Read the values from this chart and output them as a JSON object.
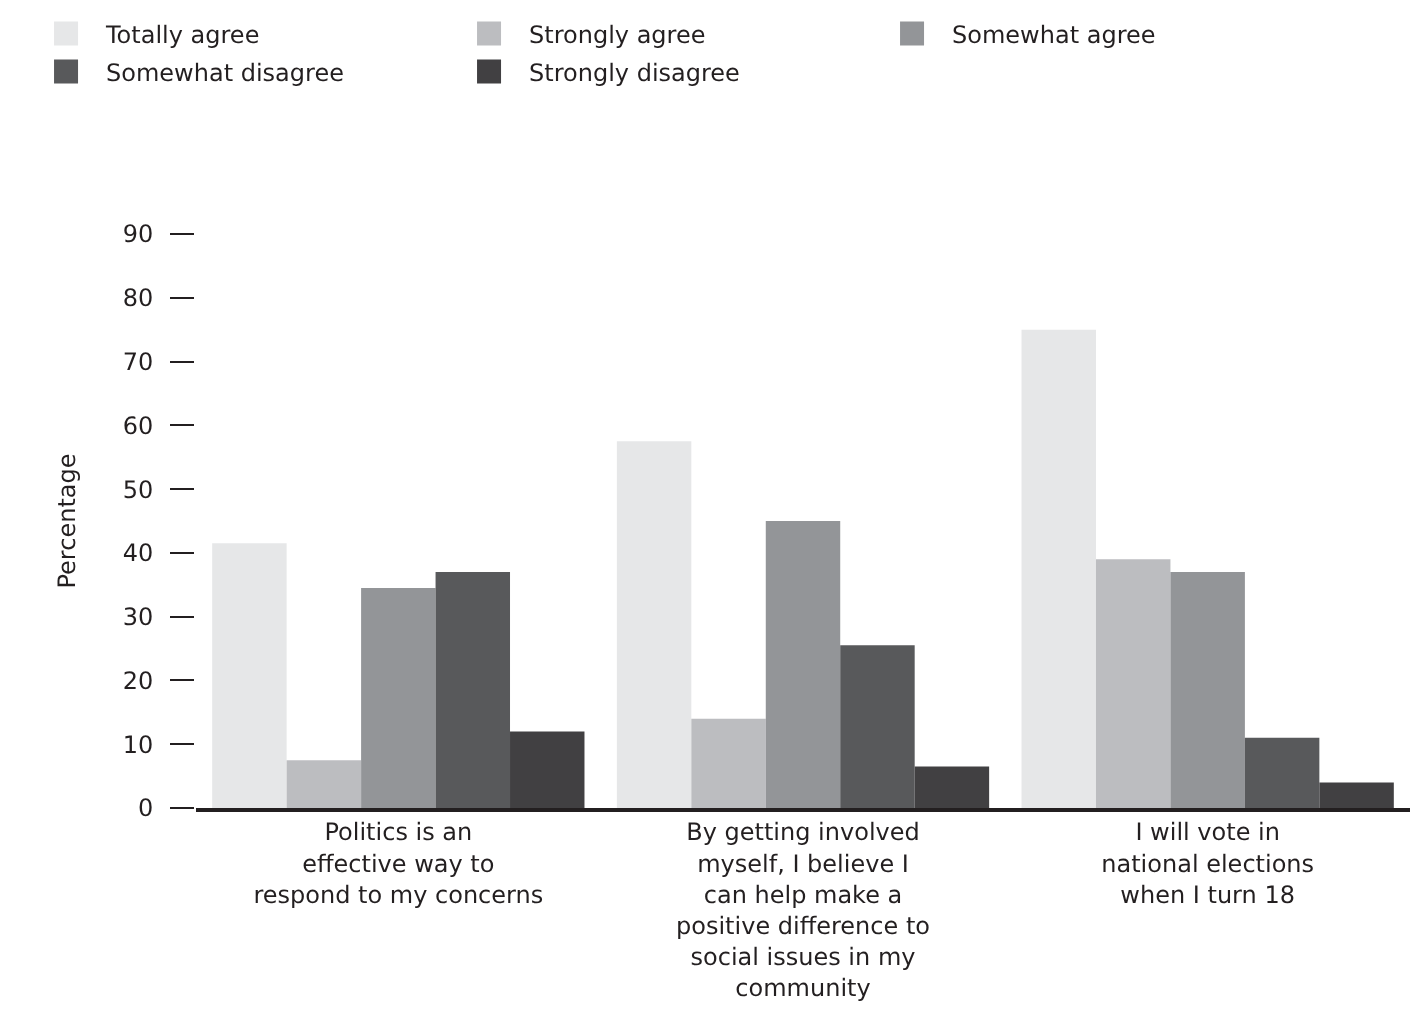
{
  "chart_data": {
    "type": "bar",
    "ylabel": "Percentage",
    "categories": [
      "Politics is an effective way to respond to my concerns",
      "By getting involved myself, I believe I can help make a positive difference to social issues in my community",
      "I will vote in national elections when I turn 18"
    ],
    "series": [
      {
        "name": "Totally agree",
        "color": "#e6e7e8",
        "values": [
          41.5,
          57.5,
          75
        ]
      },
      {
        "name": "Strongly agree",
        "color": "#bcbdc0",
        "values": [
          7.5,
          14,
          39
        ]
      },
      {
        "name": "Somewhat agree",
        "color": "#939598",
        "values": [
          34.5,
          45,
          37
        ]
      },
      {
        "name": "Somewhat disagree",
        "color": "#58595b",
        "values": [
          37,
          25.5,
          11
        ]
      },
      {
        "name": "Strongly disagree",
        "color": "#414042",
        "values": [
          12,
          6.5,
          4
        ]
      }
    ],
    "ylim": [
      0,
      90
    ],
    "yticks": [
      0,
      10,
      20,
      30,
      40,
      50,
      60,
      70,
      80,
      90
    ],
    "grid": false,
    "legend": "top"
  }
}
